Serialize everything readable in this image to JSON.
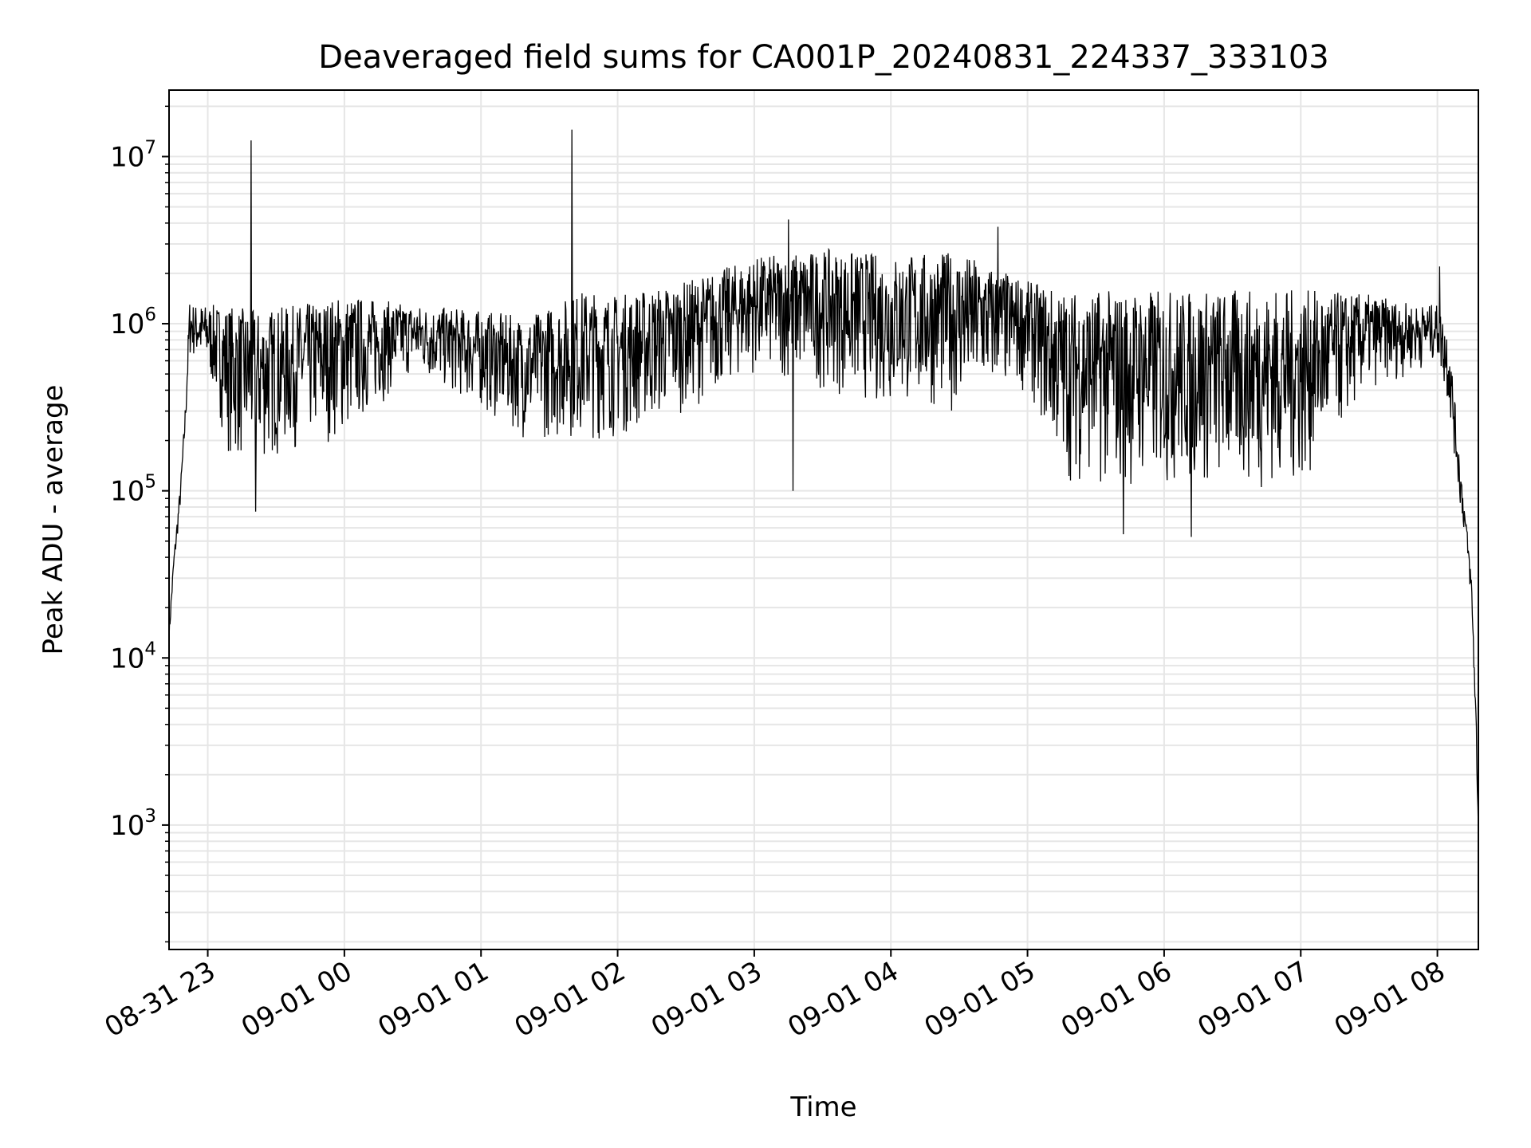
{
  "chart_data": {
    "type": "line",
    "title": "Deaveraged field sums for CA001P_20240831_224337_333103",
    "xlabel": "Time",
    "ylabel": "Peak ADU - average",
    "yscale": "log",
    "ylim": [
      180,
      25000000
    ],
    "xlim": [
      "2024-08-31 22:43",
      "2024-09-01 08:18"
    ],
    "grid": true,
    "x_ticks": [
      {
        "label": "08-31 23",
        "time": "2024-08-31 23:00"
      },
      {
        "label": "09-01 00",
        "time": "2024-09-01 00:00"
      },
      {
        "label": "09-01 01",
        "time": "2024-09-01 01:00"
      },
      {
        "label": "09-01 02",
        "time": "2024-09-01 02:00"
      },
      {
        "label": "09-01 03",
        "time": "2024-09-01 03:00"
      },
      {
        "label": "09-01 04",
        "time": "2024-09-01 04:00"
      },
      {
        "label": "09-01 05",
        "time": "2024-09-01 05:00"
      },
      {
        "label": "09-01 06",
        "time": "2024-09-01 06:00"
      },
      {
        "label": "09-01 07",
        "time": "2024-09-01 07:00"
      },
      {
        "label": "09-01 08",
        "time": "2024-09-01 08:00"
      }
    ],
    "y_ticks": [
      {
        "base": "10",
        "exp": "3",
        "value": 1000
      },
      {
        "base": "10",
        "exp": "4",
        "value": 10000
      },
      {
        "base": "10",
        "exp": "5",
        "value": 100000
      },
      {
        "base": "10",
        "exp": "6",
        "value": 1000000
      },
      {
        "base": "10",
        "exp": "7",
        "value": 10000000
      }
    ],
    "series": [
      {
        "color": "#000000",
        "envelope": {
          "time": [
            "2024-08-31 22:43",
            "2024-08-31 22:45",
            "2024-08-31 22:48",
            "2024-08-31 22:50",
            "2024-08-31 22:52",
            "2024-08-31 22:54",
            "2024-08-31 23:00",
            "2024-08-31 23:10",
            "2024-08-31 23:20",
            "2024-08-31 23:40",
            "2024-09-01 00:00",
            "2024-09-01 00:30",
            "2024-09-01 01:00",
            "2024-09-01 01:20",
            "2024-09-01 01:45",
            "2024-09-01 02:00",
            "2024-09-01 02:30",
            "2024-09-01 03:00",
            "2024-09-01 03:30",
            "2024-09-01 04:00",
            "2024-09-01 04:30",
            "2024-09-01 05:00",
            "2024-09-01 05:15",
            "2024-09-01 05:30",
            "2024-09-01 06:00",
            "2024-09-01 06:30",
            "2024-09-01 07:00",
            "2024-09-01 07:30",
            "2024-09-01 07:50",
            "2024-09-01 08:00",
            "2024-09-01 08:05",
            "2024-09-01 08:10",
            "2024-09-01 08:13",
            "2024-09-01 08:15",
            "2024-09-01 08:17",
            "2024-09-01 08:18"
          ],
          "low": [
            12000,
            30000,
            80000,
            200000,
            600000,
            600000,
            500000,
            150000,
            130000,
            180000,
            200000,
            500000,
            300000,
            200000,
            200000,
            200000,
            300000,
            500000,
            400000,
            300000,
            300000,
            400000,
            120000,
            100000,
            100000,
            100000,
            100000,
            400000,
            500000,
            600000,
            300000,
            80000,
            40000,
            20000,
            3000,
            800
          ],
          "high": [
            15000,
            40000,
            110000,
            300000,
            1400000,
            1300000,
            1300000,
            1300000,
            1200000,
            1300000,
            1500000,
            1300000,
            1200000,
            1100000,
            1600000,
            1500000,
            1800000,
            2500000,
            2800000,
            2600000,
            2700000,
            1800000,
            1600000,
            1600000,
            1600000,
            1600000,
            1600000,
            1500000,
            1300000,
            1300000,
            900000,
            150000,
            60000,
            30000,
            5000,
            1000
          ]
        },
        "extremes": [
          {
            "time": "2024-08-31 23:19",
            "value": 12500000
          },
          {
            "time": "2024-08-31 23:21",
            "value": 75000
          },
          {
            "time": "2024-09-01 01:40",
            "value": 14500000
          },
          {
            "time": "2024-09-01 03:15",
            "value": 4200000
          },
          {
            "time": "2024-09-01 03:17",
            "value": 100000
          },
          {
            "time": "2024-09-01 04:47",
            "value": 3800000
          },
          {
            "time": "2024-09-01 05:42",
            "value": 55000
          },
          {
            "time": "2024-09-01 06:12",
            "value": 53000
          },
          {
            "time": "2024-09-01 08:01",
            "value": 2200000
          }
        ]
      }
    ]
  }
}
